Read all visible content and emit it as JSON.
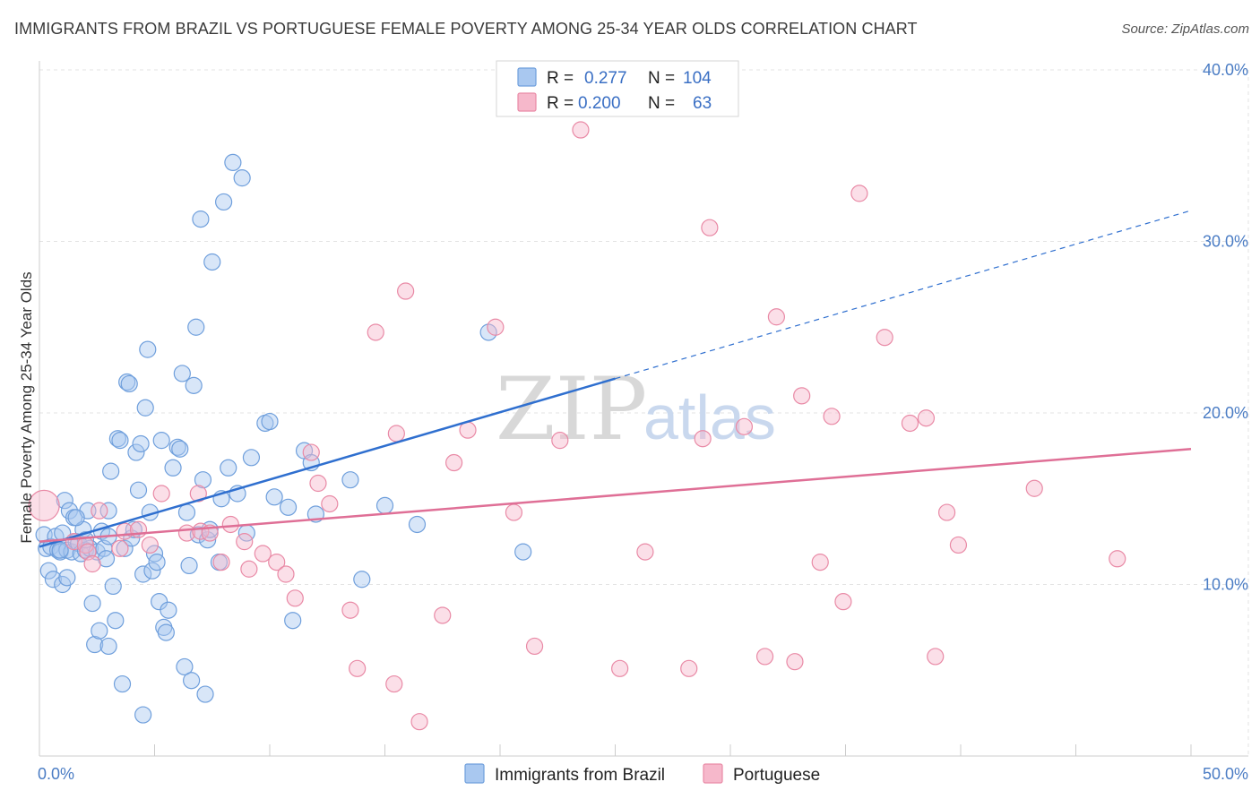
{
  "title": "IMMIGRANTS FROM BRAZIL VS PORTUGUESE FEMALE POVERTY AMONG 25-34 YEAR OLDS CORRELATION CHART",
  "source": "Source: ZipAtlas.com",
  "watermark": {
    "zip": "ZIP",
    "atlas": "atlas"
  },
  "legend": {
    "rows": [
      {
        "r_label": "R =",
        "r_value": "0.277",
        "n_label": "N =",
        "n_value": "104",
        "color": "#a9c8f0",
        "stroke": "#6f9fdc"
      },
      {
        "r_label": "R =",
        "r_value": "0.200",
        "n_label": "N =",
        "n_value": "63",
        "color": "#f6b8cb",
        "stroke": "#e98aa6"
      }
    ]
  },
  "chart_data": {
    "type": "scatter",
    "title": "IMMIGRANTS FROM BRAZIL VS PORTUGUESE FEMALE POVERTY AMONG 25-34 YEAR OLDS CORRELATION CHART",
    "xlabel": "",
    "ylabel": "Female Poverty Among 25-34 Year Olds",
    "xlim": [
      0,
      50
    ],
    "ylim": [
      0,
      40
    ],
    "x_tick_labels": [
      "0.0%",
      "50.0%"
    ],
    "y_ticks": [
      10,
      20,
      30,
      40
    ],
    "y_tick_labels": [
      "10.0%",
      "20.0%",
      "30.0%",
      "40.0%"
    ],
    "grid": true,
    "legend_position": "top-center",
    "series": [
      {
        "name": "Immigrants from Brazil",
        "color": "#a9c8f0",
        "stroke": "#6f9fdc",
        "line_color": "#2f6fcf",
        "trend": {
          "x0": 0,
          "y0": 12.2,
          "x1": 25,
          "y1": 22.0,
          "dash_to_x": 50,
          "dash_to_y": 31.8
        },
        "points": [
          [
            0.2,
            12.9
          ],
          [
            0.3,
            12.1
          ],
          [
            0.4,
            10.8
          ],
          [
            0.5,
            12.2
          ],
          [
            0.6,
            10.3
          ],
          [
            0.7,
            12.8
          ],
          [
            0.8,
            12.0
          ],
          [
            0.9,
            11.9
          ],
          [
            1.0,
            13.0
          ],
          [
            1.0,
            10.0
          ],
          [
            1.1,
            14.9
          ],
          [
            1.2,
            12.0
          ],
          [
            1.2,
            10.4
          ],
          [
            1.3,
            14.3
          ],
          [
            1.4,
            11.9
          ],
          [
            1.5,
            13.9
          ],
          [
            1.6,
            12.5
          ],
          [
            1.7,
            12.4
          ],
          [
            1.8,
            11.8
          ],
          [
            1.9,
            13.2
          ],
          [
            2.0,
            12.0
          ],
          [
            2.1,
            14.3
          ],
          [
            2.2,
            12.1
          ],
          [
            2.3,
            8.9
          ],
          [
            2.4,
            6.5
          ],
          [
            2.5,
            11.9
          ],
          [
            2.6,
            7.3
          ],
          [
            2.7,
            13.1
          ],
          [
            2.8,
            12.1
          ],
          [
            2.9,
            11.5
          ],
          [
            3.0,
            14.3
          ],
          [
            3.0,
            6.4
          ],
          [
            3.1,
            16.6
          ],
          [
            3.2,
            9.9
          ],
          [
            3.3,
            7.9
          ],
          [
            3.4,
            18.5
          ],
          [
            3.5,
            18.4
          ],
          [
            3.6,
            4.2
          ],
          [
            3.7,
            12.1
          ],
          [
            3.8,
            21.8
          ],
          [
            3.9,
            21.7
          ],
          [
            4.0,
            12.7
          ],
          [
            4.1,
            13.2
          ],
          [
            4.2,
            17.7
          ],
          [
            4.3,
            15.5
          ],
          [
            4.4,
            18.2
          ],
          [
            4.5,
            10.6
          ],
          [
            4.5,
            2.4
          ],
          [
            4.6,
            20.3
          ],
          [
            4.7,
            23.7
          ],
          [
            4.8,
            14.2
          ],
          [
            4.9,
            10.8
          ],
          [
            5.0,
            11.8
          ],
          [
            5.1,
            11.3
          ],
          [
            5.2,
            9.0
          ],
          [
            5.3,
            18.4
          ],
          [
            5.4,
            7.5
          ],
          [
            5.5,
            7.2
          ],
          [
            5.6,
            8.5
          ],
          [
            5.8,
            16.8
          ],
          [
            6.0,
            18.0
          ],
          [
            6.1,
            17.9
          ],
          [
            6.2,
            22.3
          ],
          [
            6.3,
            5.2
          ],
          [
            6.4,
            14.2
          ],
          [
            6.5,
            11.1
          ],
          [
            6.6,
            4.4
          ],
          [
            6.7,
            21.6
          ],
          [
            6.8,
            25.0
          ],
          [
            6.9,
            12.9
          ],
          [
            7.0,
            31.3
          ],
          [
            7.1,
            16.1
          ],
          [
            7.2,
            3.6
          ],
          [
            7.3,
            12.6
          ],
          [
            7.4,
            13.2
          ],
          [
            7.5,
            28.8
          ],
          [
            7.8,
            11.3
          ],
          [
            7.9,
            15.0
          ],
          [
            8.0,
            32.3
          ],
          [
            8.2,
            16.8
          ],
          [
            8.4,
            34.6
          ],
          [
            8.6,
            15.3
          ],
          [
            8.8,
            33.7
          ],
          [
            9.0,
            13.0
          ],
          [
            9.2,
            17.4
          ],
          [
            9.8,
            19.4
          ],
          [
            10.0,
            19.5
          ],
          [
            10.2,
            15.1
          ],
          [
            10.8,
            14.5
          ],
          [
            11.0,
            7.9
          ],
          [
            11.5,
            17.8
          ],
          [
            11.8,
            17.1
          ],
          [
            12.0,
            14.1
          ],
          [
            13.5,
            16.1
          ],
          [
            14.0,
            10.3
          ],
          [
            15.0,
            14.6
          ],
          [
            16.4,
            13.5
          ],
          [
            19.5,
            24.7
          ],
          [
            21.0,
            11.9
          ],
          [
            3.0,
            12.8
          ],
          [
            2.0,
            12.6
          ],
          [
            1.6,
            13.9
          ],
          [
            0.9,
            12.0
          ]
        ]
      },
      {
        "name": "Portuguese",
        "color": "#f6b8cb",
        "stroke": "#e98aa6",
        "line_color": "#df6f96",
        "trend": {
          "x0": 0,
          "y0": 12.5,
          "x1": 50,
          "y1": 17.9
        },
        "points": [
          [
            0.2,
            14.6
          ],
          [
            1.5,
            12.5
          ],
          [
            2.0,
            12.3
          ],
          [
            2.1,
            11.9
          ],
          [
            2.3,
            11.2
          ],
          [
            2.6,
            14.3
          ],
          [
            3.5,
            12.1
          ],
          [
            3.7,
            13.1
          ],
          [
            4.3,
            13.2
          ],
          [
            4.8,
            12.3
          ],
          [
            5.3,
            15.3
          ],
          [
            6.4,
            13.0
          ],
          [
            6.9,
            15.3
          ],
          [
            7.0,
            13.1
          ],
          [
            7.4,
            13.0
          ],
          [
            7.9,
            11.3
          ],
          [
            8.3,
            13.5
          ],
          [
            8.9,
            12.5
          ],
          [
            9.1,
            10.9
          ],
          [
            9.7,
            11.8
          ],
          [
            10.3,
            11.3
          ],
          [
            10.7,
            10.6
          ],
          [
            11.1,
            9.2
          ],
          [
            11.8,
            17.7
          ],
          [
            12.1,
            15.9
          ],
          [
            12.6,
            14.7
          ],
          [
            13.5,
            8.5
          ],
          [
            13.8,
            5.1
          ],
          [
            14.6,
            24.7
          ],
          [
            15.4,
            4.2
          ],
          [
            15.5,
            18.8
          ],
          [
            15.9,
            27.1
          ],
          [
            16.5,
            2.0
          ],
          [
            17.5,
            8.2
          ],
          [
            18.0,
            17.1
          ],
          [
            18.6,
            19.0
          ],
          [
            19.8,
            25.0
          ],
          [
            20.6,
            14.2
          ],
          [
            21.5,
            6.4
          ],
          [
            22.6,
            18.4
          ],
          [
            23.5,
            36.5
          ],
          [
            25.2,
            5.1
          ],
          [
            26.3,
            11.9
          ],
          [
            28.2,
            5.1
          ],
          [
            28.8,
            18.5
          ],
          [
            29.1,
            30.8
          ],
          [
            30.6,
            19.2
          ],
          [
            31.5,
            5.8
          ],
          [
            32.0,
            25.6
          ],
          [
            32.8,
            5.5
          ],
          [
            33.1,
            21.0
          ],
          [
            33.9,
            11.3
          ],
          [
            34.4,
            19.8
          ],
          [
            34.9,
            9.0
          ],
          [
            35.6,
            32.8
          ],
          [
            36.7,
            24.4
          ],
          [
            37.8,
            19.4
          ],
          [
            38.5,
            19.7
          ],
          [
            38.9,
            5.8
          ],
          [
            39.4,
            14.2
          ],
          [
            39.9,
            12.3
          ],
          [
            43.2,
            15.6
          ],
          [
            46.8,
            11.5
          ]
        ]
      }
    ]
  },
  "bottom_legend": [
    {
      "label": "Immigrants from Brazil",
      "color": "#a9c8f0",
      "stroke": "#6f9fdc"
    },
    {
      "label": "Portuguese",
      "color": "#f6b8cb",
      "stroke": "#e98aa6"
    }
  ]
}
